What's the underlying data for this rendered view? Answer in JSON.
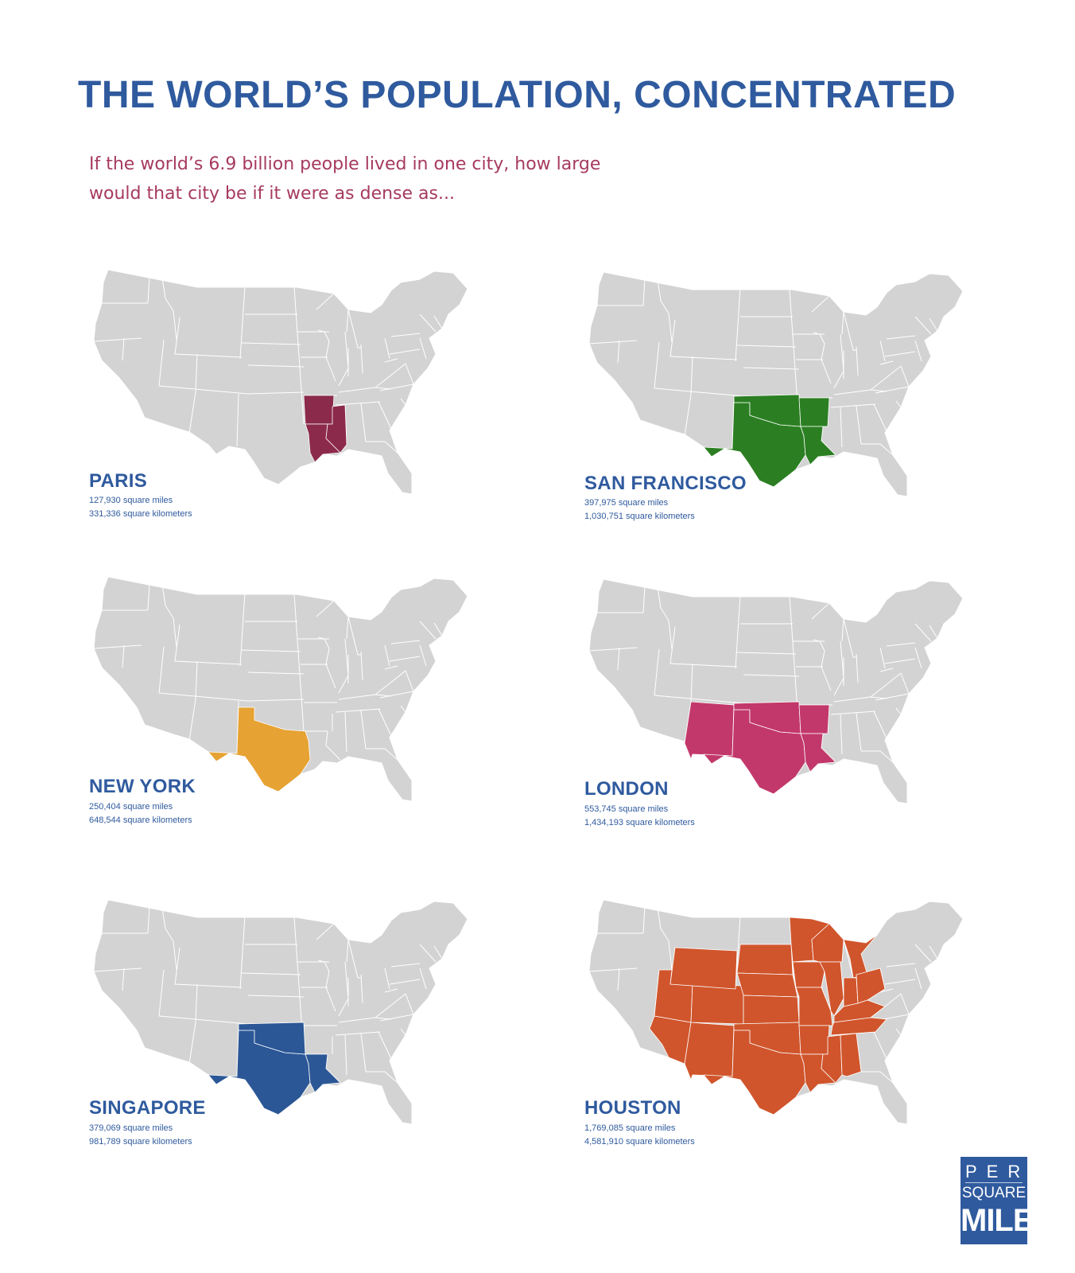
{
  "title": "THE WORLD’S POPULATION, CONCENTRATED",
  "subtitle_line1": "If the world’s 6.9 billion people lived in one city, how large",
  "subtitle_line2": "would that city be if it were as dense as...",
  "colors": {
    "land": "#d3d3d3",
    "border": "#ffffff",
    "title": "#2f5a9e",
    "subtitle": "#a63a5e"
  },
  "panels": [
    {
      "city": "PARIS",
      "miles": "127,930 square miles",
      "km": "331,336 square kilometers",
      "color": "#8c2a4b",
      "regions": [
        "Arkansas",
        "Louisiana",
        "Mississippi"
      ]
    },
    {
      "city": "SAN FRANCISCO",
      "miles": "397,975 square miles",
      "km": "1,030,751 square kilometers",
      "color": "#2b7f22",
      "regions": [
        "Texas",
        "Oklahoma",
        "Arkansas",
        "Louisiana"
      ]
    },
    {
      "city": "NEW YORK",
      "miles": "250,404 square miles",
      "km": "648,544 square kilometers",
      "color": "#e6a232",
      "regions": [
        "Texas"
      ]
    },
    {
      "city": "LONDON",
      "miles": "553,745 square miles",
      "km": "1,434,193 square kilometers",
      "color": "#c2386a",
      "regions": [
        "New Mexico",
        "Texas",
        "Oklahoma",
        "Arkansas",
        "Louisiana"
      ]
    },
    {
      "city": "SINGAPORE",
      "miles": "379,069 square miles",
      "km": "981,789 square kilometers",
      "color": "#2b5796",
      "regions": [
        "Texas",
        "Oklahoma",
        "Louisiana"
      ]
    },
    {
      "city": "HOUSTON",
      "miles": "1,769,085 square miles",
      "km": "4,581,910 square kilometers",
      "color": "#d0552c",
      "regions": [
        "Arizona",
        "New Mexico",
        "Utah",
        "Colorado",
        "Wyoming",
        "South Dakota",
        "Nebraska",
        "Kansas",
        "Oklahoma",
        "Texas",
        "Minnesota",
        "Iowa",
        "Missouri",
        "Arkansas",
        "Louisiana",
        "Wisconsin",
        "Illinois",
        "Michigan",
        "Indiana",
        "Ohio",
        "Kentucky",
        "Tennessee",
        "Mississippi",
        "Alabama"
      ]
    }
  ],
  "logo": {
    "line1": "PER",
    "line2": "SQUARE",
    "line3": "MILE"
  }
}
